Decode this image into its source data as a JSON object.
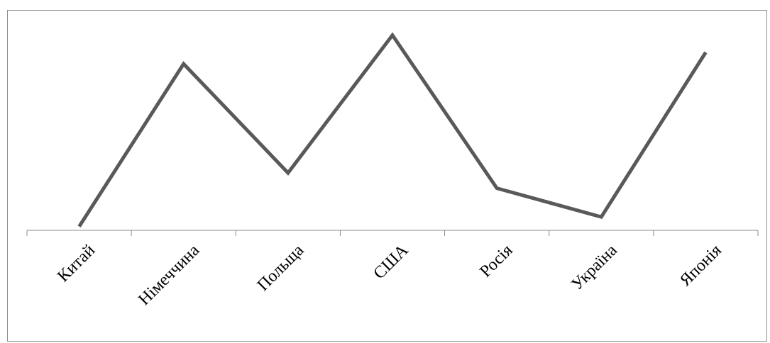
{
  "chart_data": {
    "type": "line",
    "title": "",
    "xlabel": "",
    "ylabel": "",
    "categories": [
      "Китай",
      "Німеччина",
      "Польща",
      "США",
      "Росія",
      "Україна",
      "Японія"
    ],
    "series": [
      {
        "values": [
          2,
          87,
          30,
          102,
          22,
          7,
          93
        ]
      }
    ],
    "ylim": [
      0,
      110
    ],
    "grid": false,
    "legend": "none",
    "y_axis_visible": false,
    "line_color": "#595959",
    "axis_color": "#8c8c8c"
  }
}
